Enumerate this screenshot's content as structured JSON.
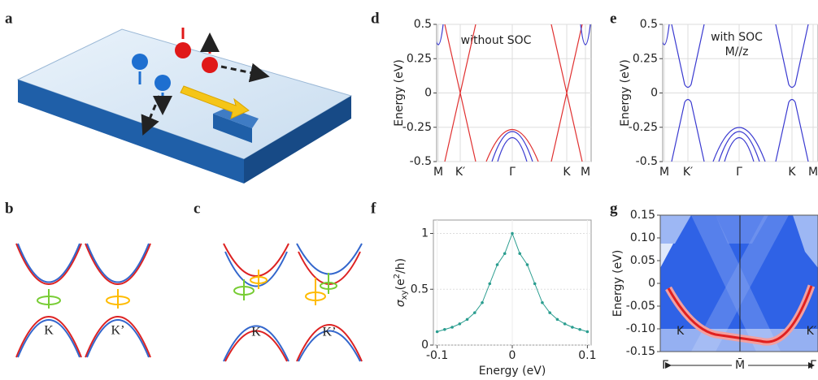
{
  "panel_labels": [
    "a",
    "b",
    "c",
    "d",
    "e",
    "f",
    "g"
  ],
  "panel_b": {
    "labels": [
      "K",
      "K’"
    ]
  },
  "panel_c": {
    "labels": [
      "K",
      "K’"
    ]
  },
  "chart_data": [
    {
      "type": "bands",
      "annotation": [
        "without SOC"
      ],
      "ylabel": "Energy (eV)",
      "ylim": [
        -0.5,
        0.5
      ],
      "yticks": [
        -0.5,
        -0.25,
        0,
        0.25,
        0.5
      ],
      "categories": [
        "M",
        "K′",
        "Γ",
        "K",
        "M"
      ],
      "grid": true
    },
    {
      "type": "bands",
      "annotation": [
        "with SOC",
        "M//z"
      ],
      "ylabel": "Energy (eV)",
      "ylim": [
        -0.5,
        0.5
      ],
      "yticks": [
        -0.5,
        -0.25,
        0,
        0.25,
        0.5
      ],
      "categories": [
        "M",
        "K′",
        "Γ",
        "K",
        "M"
      ],
      "grid": true
    },
    {
      "type": "line",
      "xlabel": "Energy (eV)",
      "ylabel": [
        "σ",
        "xy",
        "(e",
        "2",
        "/h)"
      ],
      "xlim": [
        -0.105,
        0.105
      ],
      "xticks": [
        -0.1,
        0,
        0.1
      ],
      "ylim": [
        0,
        1.12
      ],
      "yticks": [
        0,
        0.5,
        1
      ],
      "grid": true,
      "color": "#2a9d8f",
      "x": [
        -0.1,
        -0.09,
        -0.08,
        -0.07,
        -0.06,
        -0.05,
        -0.04,
        -0.03,
        -0.02,
        -0.01,
        0,
        0.01,
        0.02,
        0.03,
        0.04,
        0.05,
        0.06,
        0.07,
        0.08,
        0.09,
        0.1
      ],
      "values": [
        0.12,
        0.14,
        0.16,
        0.19,
        0.23,
        0.29,
        0.38,
        0.55,
        0.72,
        0.82,
        1.0,
        0.82,
        0.72,
        0.55,
        0.38,
        0.29,
        0.23,
        0.19,
        0.16,
        0.14,
        0.12
      ]
    },
    {
      "type": "heatmap",
      "ylabel": "Energy (eV)",
      "ylim": [
        -0.15,
        0.15
      ],
      "yticks": [
        -0.15,
        {
          "value": -0.1,
          "label": "-0.10"
        },
        -0.05,
        0,
        0.05,
        {
          "value": 0.1,
          "label": "0.10"
        },
        0.15
      ],
      "categories": [
        "Γ̄",
        "M̄",
        "Γ̄"
      ],
      "annotations": [
        "K",
        "K′"
      ]
    }
  ]
}
